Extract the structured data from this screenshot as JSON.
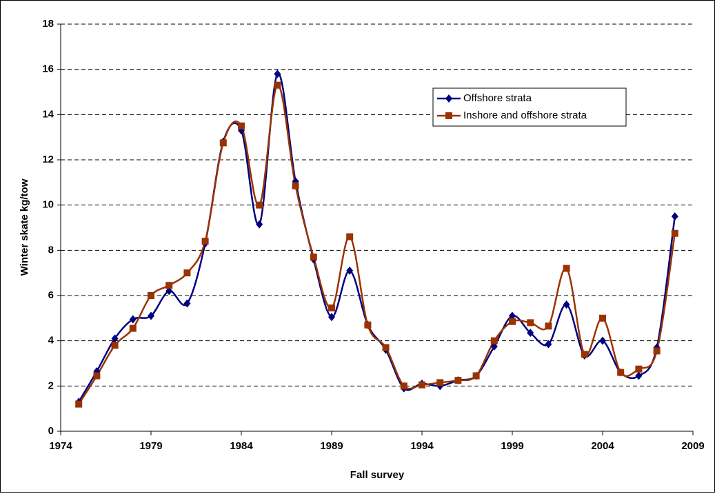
{
  "chart_data": {
    "type": "line",
    "xlabel": "Fall survey",
    "ylabel": "Winter skate kg/tow",
    "x": [
      1975,
      1976,
      1977,
      1978,
      1979,
      1980,
      1981,
      1982,
      1983,
      1984,
      1985,
      1986,
      1987,
      1988,
      1989,
      1990,
      1991,
      1992,
      1993,
      1994,
      1995,
      1996,
      1997,
      1998,
      1999,
      2000,
      2001,
      2002,
      2003,
      2004,
      2005,
      2006,
      2007,
      2008
    ],
    "series": [
      {
        "name": "Offshore strata",
        "color": "#000080",
        "marker": "diamond",
        "values": [
          1.3,
          2.65,
          4.1,
          4.95,
          5.1,
          6.2,
          5.65,
          8.3,
          12.8,
          13.3,
          9.15,
          15.8,
          11.05,
          7.6,
          5.05,
          7.1,
          4.7,
          3.6,
          1.9,
          2.1,
          2.0,
          2.25,
          2.45,
          3.75,
          5.1,
          4.35,
          3.85,
          5.6,
          3.35,
          4.0,
          2.6,
          2.45,
          3.7,
          9.5
        ]
      },
      {
        "name": "Inshore and offshore strata",
        "color": "#993300",
        "marker": "square",
        "values": [
          1.2,
          2.45,
          3.8,
          4.55,
          6.0,
          6.45,
          7.0,
          8.4,
          12.75,
          13.5,
          10.0,
          15.3,
          10.85,
          7.7,
          5.45,
          8.6,
          4.7,
          3.7,
          2.0,
          2.05,
          2.15,
          2.25,
          2.45,
          4.0,
          4.85,
          4.8,
          4.65,
          7.2,
          3.4,
          5.0,
          2.6,
          2.75,
          3.55,
          8.75
        ]
      }
    ],
    "xlim": [
      1974,
      2009
    ],
    "xticks": [
      1974,
      1979,
      1984,
      1989,
      1994,
      1999,
      2004,
      2009
    ],
    "ylim": [
      0,
      18
    ],
    "yticks": [
      0,
      2,
      4,
      6,
      8,
      10,
      12,
      14,
      16,
      18
    ],
    "grid": true,
    "legend": "upper right"
  }
}
